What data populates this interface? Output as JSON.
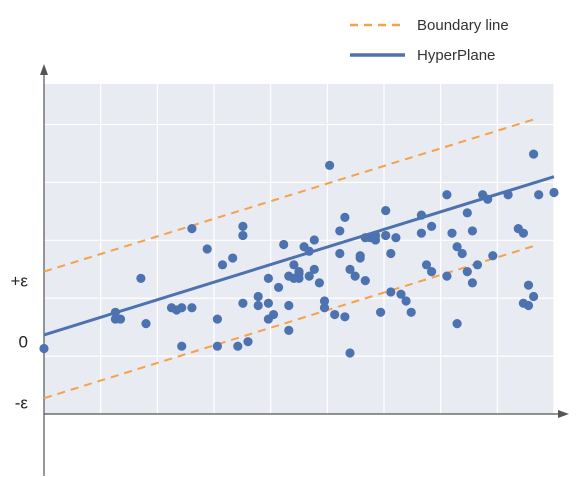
{
  "chart_data": {
    "type": "scatter",
    "title": "",
    "xlabel": "",
    "ylabel": "",
    "grid": true,
    "legend_position": "top-right",
    "xlim": [
      0,
      10
    ],
    "ylim": [
      -1.0,
      6.3
    ],
    "y_tick_labels": [
      {
        "label": "+ε",
        "value": 1.95
      },
      {
        "label": "0",
        "value": 0.6
      },
      {
        "label": "-ε",
        "value": -0.75
      }
    ],
    "legend": [
      {
        "label": "Boundary line",
        "color": "#F5A04A",
        "style": "dashed"
      },
      {
        "label": "HyperPlane",
        "color": "#4C72B0",
        "style": "solid"
      }
    ],
    "lines": [
      {
        "name": "HyperPlane",
        "role": "hyperplane",
        "color": "#4C72B0",
        "style": "solid",
        "x": [
          0,
          10
        ],
        "y": [
          0.75,
          4.25
        ]
      },
      {
        "name": "Boundary line",
        "role": "upper-boundary",
        "color": "#F5A04A",
        "style": "dashed",
        "x": [
          0,
          9.7
        ],
        "y": [
          2.15,
          5.55
        ]
      },
      {
        "name": "Boundary line",
        "role": "lower-boundary",
        "color": "#F5A04A",
        "style": "dashed",
        "x": [
          0,
          9.7
        ],
        "y": [
          -0.65,
          2.75
        ]
      }
    ],
    "points": {
      "color": "#4C72B0",
      "x": [
        0.0,
        1.4,
        1.4,
        1.5,
        1.9,
        2.0,
        2.5,
        2.6,
        2.7,
        2.7,
        2.9,
        2.9,
        3.2,
        3.4,
        3.4,
        3.5,
        3.7,
        3.8,
        3.9,
        3.9,
        3.9,
        4.0,
        4.2,
        4.2,
        4.4,
        4.4,
        4.4,
        4.5,
        4.6,
        4.7,
        4.8,
        4.8,
        4.8,
        4.9,
        4.9,
        5.0,
        5.0,
        5.0,
        5.1,
        5.2,
        5.2,
        5.3,
        5.3,
        5.4,
        5.5,
        5.5,
        5.6,
        5.7,
        5.8,
        5.8,
        5.9,
        5.9,
        6.0,
        6.0,
        6.1,
        6.2,
        6.2,
        6.3,
        6.3,
        6.4,
        6.5,
        6.5,
        6.6,
        6.7,
        6.7,
        6.8,
        6.8,
        6.9,
        7.0,
        7.1,
        7.2,
        7.4,
        7.4,
        7.5,
        7.6,
        7.6,
        7.9,
        7.9,
        8.0,
        8.1,
        8.1,
        8.2,
        8.3,
        8.3,
        8.4,
        8.4,
        8.5,
        8.6,
        8.7,
        8.8,
        9.1,
        9.3,
        9.4,
        9.4,
        9.5,
        9.5,
        9.6,
        9.6,
        9.7,
        10.0
      ],
      "y": [
        0.45,
        1.25,
        1.1,
        1.1,
        2.0,
        1.0,
        1.35,
        1.3,
        0.5,
        1.35,
        1.35,
        3.1,
        2.65,
        0.5,
        1.1,
        2.3,
        2.45,
        0.5,
        1.45,
        2.95,
        3.15,
        0.6,
        1.4,
        1.6,
        1.1,
        2.0,
        1.45,
        1.2,
        1.8,
        2.75,
        2.05,
        1.4,
        0.85,
        2.3,
        2.0,
        2.1,
        2.0,
        2.15,
        2.7,
        2.6,
        2.05,
        2.85,
        2.2,
        1.9,
        1.5,
        1.35,
        4.5,
        1.2,
        3.05,
        2.55,
        3.35,
        1.15,
        0.35,
        2.2,
        2.05,
        2.45,
        2.5,
        2.9,
        1.95,
        2.9,
        2.95,
        2.85,
        1.25,
        3.5,
        2.95,
        2.55,
        1.7,
        2.9,
        1.65,
        1.5,
        1.25,
        3.0,
        3.4,
        2.3,
        2.15,
        3.15,
        3.85,
        2.05,
        3.0,
        2.7,
        1.0,
        2.55,
        3.45,
        2.15,
        3.05,
        1.9,
        2.3,
        3.85,
        3.75,
        2.5,
        3.85,
        3.1,
        3.0,
        1.45,
        1.4,
        1.85,
        1.6,
        4.75,
        3.85,
        3.9
      ]
    }
  }
}
